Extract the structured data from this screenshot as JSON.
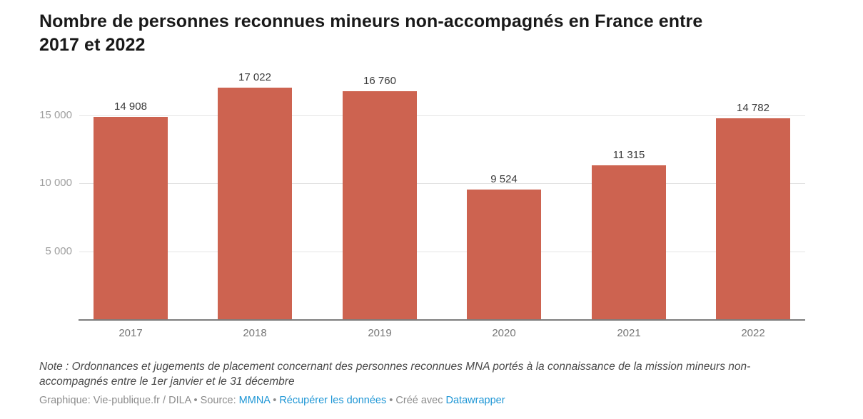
{
  "header": {
    "title_line1": "Nombre de personnes reconnues mineurs non-accompagnés en France entre",
    "title_line2": "2017 et 2022"
  },
  "chart_data": {
    "type": "bar",
    "title": "Nombre de personnes reconnues mineurs non-accompagnés en France entre 2017 et 2022",
    "categories": [
      "2017",
      "2018",
      "2019",
      "2020",
      "2021",
      "2022"
    ],
    "values": [
      14908,
      17022,
      16760,
      9524,
      11315,
      14782
    ],
    "value_labels": [
      "14 908",
      "17 022",
      "16 760",
      "9 524",
      "11 315",
      "14 782"
    ],
    "yticks": [
      {
        "value": 5000,
        "label": "5 000"
      },
      {
        "value": 10000,
        "label": "10 000"
      },
      {
        "value": 15000,
        "label": "15 000"
      }
    ],
    "ylim": [
      0,
      17500
    ],
    "xlabel": "",
    "ylabel": "",
    "grid": "horizontal",
    "legend": "none"
  },
  "colors": {
    "bar": "#cd6350",
    "link": "#1e96d5",
    "gridline": "#e3e3e3",
    "baseline": "#7d7d7d"
  },
  "note": {
    "lines": [
      "Note : Ordonnances et jugements de placement concernant des personnes reconnues MNA portés à la connaissance de la mission mineurs non-",
      "accompagnés entre le 1er janvier et le 31 décembre"
    ]
  },
  "footer": {
    "segments": [
      {
        "type": "text",
        "name": "attribution-text",
        "text": "Graphique: Vie-publique.fr / DILA"
      },
      {
        "type": "text",
        "name": "separator",
        "text": " • "
      },
      {
        "type": "text",
        "name": "source-label",
        "text": "Source: "
      },
      {
        "type": "link",
        "name": "source-link",
        "text": "MMNA"
      },
      {
        "type": "text",
        "name": "separator",
        "text": " • "
      },
      {
        "type": "link",
        "name": "get-the-data-link",
        "text": "Récupérer les données"
      },
      {
        "type": "text",
        "name": "separator",
        "text": " • "
      },
      {
        "type": "text",
        "name": "created-with-label",
        "text": "Créé avec "
      },
      {
        "type": "link",
        "name": "datawrapper-link",
        "text": "Datawrapper"
      }
    ]
  }
}
